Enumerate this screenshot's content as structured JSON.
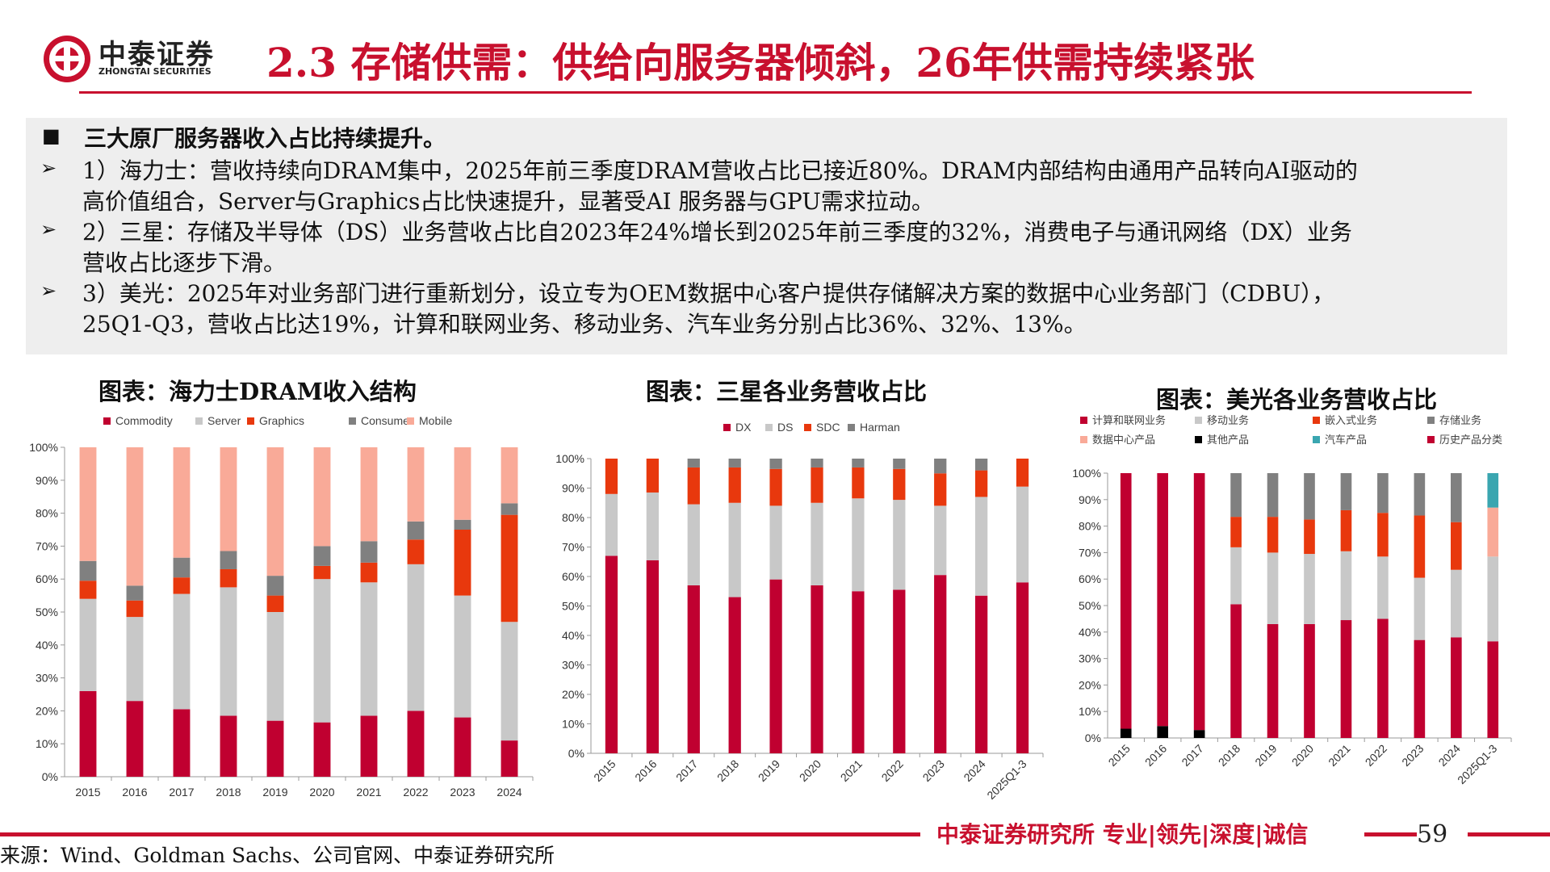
{
  "header": {
    "logo_cn": "中泰证券",
    "logo_en": "ZHONGTAI SECURITIES",
    "title": "2.3 存储供需：供给向服务器倾斜，26年供需持续紧张"
  },
  "summary": {
    "heading": "三大原厂服务器收入占比持续提升。",
    "bullets": [
      [
        "1）海力士：营收持续向DRAM集中，2025年前三季度DRAM营收占比已接近80%。DRAM内部结构由通用产品转向AI驱动的",
        "高价值组合，Server与Graphics占比快速提升，显著受AI 服务器与GPU需求拉动。"
      ],
      [
        "2）三星：存储及半导体（DS）业务营收占比自2023年24%增长到2025年前三季度的32%，消费电子与通讯网络（DX）业务",
        "营收占比逐步下滑。"
      ],
      [
        "3）美光：2025年对业务部门进行重新划分，设立专为OEM数据中心客户提供存储解决方案的数据中心业务部门（CDBU），",
        "25Q1-Q3，营收占比达19%，计算和联网业务、移动业务、汽车业务分别占比36%、32%、13%。"
      ]
    ]
  },
  "chart_data": [
    {
      "type": "bar",
      "stacked": true,
      "title": "图表：海力士DRAM收入结构",
      "categories": [
        "2015",
        "2016",
        "2017",
        "2018",
        "2019",
        "2020",
        "2021",
        "2022",
        "2023",
        "2024"
      ],
      "ylim": [
        0,
        100
      ],
      "yticks": [
        "0%",
        "10%",
        "20%",
        "30%",
        "40%",
        "50%",
        "60%",
        "70%",
        "80%",
        "90%",
        "100%"
      ],
      "legend": "top",
      "series": [
        {
          "name": "Commodity",
          "color": "#c00030",
          "values": [
            26,
            23,
            20.5,
            18.5,
            17,
            16.5,
            18.5,
            20,
            18,
            11
          ]
        },
        {
          "name": "Server",
          "color": "#c8c8c8",
          "values": [
            28,
            25.5,
            35,
            39,
            33,
            43.5,
            40.5,
            44.5,
            37,
            36
          ]
        },
        {
          "name": "Graphics",
          "color": "#e8380d",
          "values": [
            5.5,
            5,
            5,
            5.5,
            5,
            4,
            6,
            7.5,
            20,
            32.5
          ]
        },
        {
          "name": "Consumer",
          "color": "#808080",
          "values": [
            6,
            4.5,
            6,
            5.5,
            6,
            6,
            6.5,
            5.5,
            3,
            3.5
          ]
        },
        {
          "name": "Mobile",
          "color": "#f9aa98",
          "values": [
            34.5,
            42,
            33.5,
            31.5,
            39,
            30,
            28.5,
            22.5,
            22,
            17
          ]
        }
      ]
    },
    {
      "type": "bar",
      "stacked": true,
      "title": "图表：三星各业务营收占比",
      "categories": [
        "2015",
        "2016",
        "2017",
        "2018",
        "2019",
        "2020",
        "2021",
        "2022",
        "2023",
        "2024",
        "2025Q1-3"
      ],
      "ylim": [
        0,
        100
      ],
      "yticks": [
        "0%",
        "10%",
        "20%",
        "30%",
        "40%",
        "50%",
        "60%",
        "70%",
        "80%",
        "90%",
        "100%"
      ],
      "legend": "top",
      "series": [
        {
          "name": "DX",
          "color": "#c00030",
          "values": [
            67,
            65.5,
            57,
            53,
            59,
            57,
            55,
            55.5,
            60.5,
            53.5,
            58
          ]
        },
        {
          "name": "DS",
          "color": "#c8c8c8",
          "values": [
            21,
            23,
            27.5,
            32,
            25,
            28,
            31.5,
            30.5,
            23.5,
            33.5,
            32.5
          ]
        },
        {
          "name": "SDC",
          "color": "#e8380d",
          "values": [
            12,
            11.5,
            12.5,
            12,
            12.5,
            12,
            10.5,
            10.5,
            11,
            9,
            9.5
          ]
        },
        {
          "name": "Harman",
          "color": "#808080",
          "values": [
            0,
            0,
            3,
            3,
            3.5,
            3,
            3,
            3.5,
            5,
            4,
            0
          ]
        }
      ]
    },
    {
      "type": "bar",
      "stacked": true,
      "title": "图表：美光各业务营收占比",
      "categories": [
        "2015",
        "2016",
        "2017",
        "2018",
        "2019",
        "2020",
        "2021",
        "2022",
        "2023",
        "2024",
        "2025Q1-3"
      ],
      "ylim": [
        0,
        100
      ],
      "yticks": [
        "0%",
        "10%",
        "20%",
        "30%",
        "40%",
        "50%",
        "60%",
        "70%",
        "80%",
        "90%",
        "100%"
      ],
      "legend": "top",
      "series": [
        {
          "name": "其他产品",
          "color": "#000000",
          "values": [
            3.5,
            4.5,
            3,
            0,
            0,
            0,
            0,
            0,
            0,
            0,
            0
          ]
        },
        {
          "name": "历史产品分类",
          "color": "#c00030",
          "values": [
            96.5,
            95.5,
            97,
            0,
            0,
            0,
            0,
            0,
            0,
            0,
            0
          ]
        },
        {
          "name": "计算和联网业务",
          "color": "#c00030",
          "values": [
            0,
            0,
            0,
            50.5,
            43,
            43,
            44.5,
            45,
            37,
            38,
            36.5
          ]
        },
        {
          "name": "移动业务",
          "color": "#c8c8c8",
          "values": [
            0,
            0,
            0,
            21.5,
            27,
            26.5,
            26,
            23.5,
            23.5,
            25.5,
            32
          ]
        },
        {
          "name": "嵌入式业务",
          "color": "#e8380d",
          "values": [
            0,
            0,
            0,
            11.5,
            13.5,
            13,
            15.5,
            16.5,
            23.5,
            18,
            0
          ]
        },
        {
          "name": "存储业务",
          "color": "#808080",
          "values": [
            0,
            0,
            0,
            16.5,
            16.5,
            17.5,
            14,
            15,
            16,
            18.5,
            0
          ]
        },
        {
          "name": "数据中心产品",
          "color": "#f9aa98",
          "values": [
            0,
            0,
            0,
            0,
            0,
            0,
            0,
            0,
            0,
            0,
            18.5
          ]
        },
        {
          "name": "汽车产品",
          "color": "#3aa6b0",
          "values": [
            0,
            0,
            0,
            0,
            0,
            0,
            0,
            0,
            0,
            0,
            13
          ]
        }
      ]
    }
  ],
  "footer": {
    "slogan": "中泰证券研究所 专业|领先|深度|诚信",
    "page": "59",
    "source": "来源：Wind、Goldman Sachs、公司官网、中泰证券研究所"
  }
}
